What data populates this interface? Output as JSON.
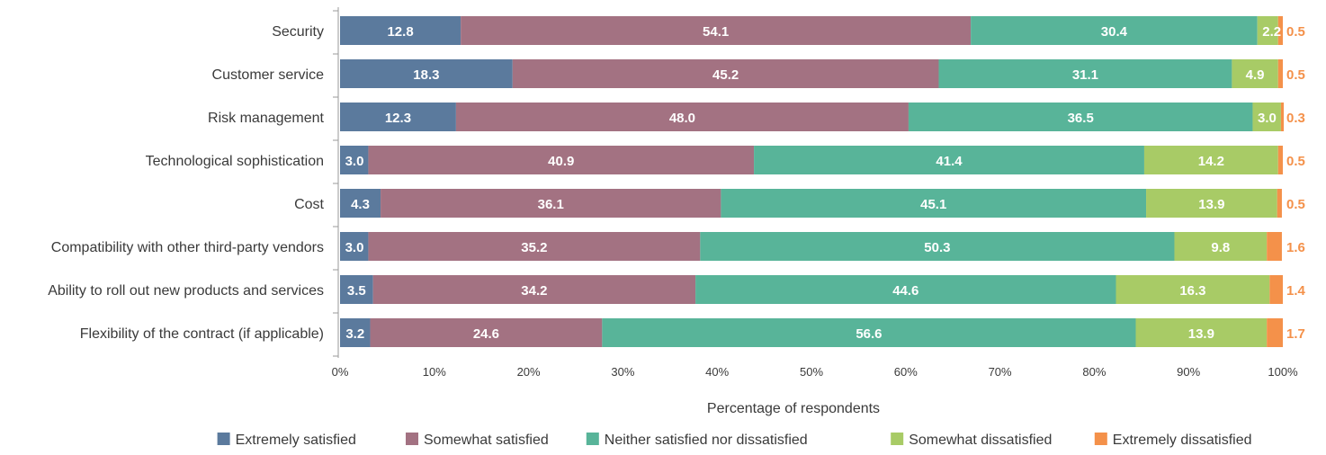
{
  "chart_data": {
    "type": "bar",
    "orientation": "horizontal",
    "stacked": true,
    "categories": [
      "Security",
      "Customer service",
      "Risk management",
      "Technological sophistication",
      "Cost",
      "Compatibility with other third-party vendors",
      "Ability to roll out new products and services",
      "Flexibility of the contract (if applicable)"
    ],
    "series": [
      {
        "name": "Extremely satisfied",
        "color": "#5b7a9d",
        "values": [
          12.8,
          18.3,
          12.3,
          3.0,
          4.3,
          3.0,
          3.5,
          3.2
        ]
      },
      {
        "name": "Somewhat satisfied",
        "color": "#a37282",
        "values": [
          54.1,
          45.2,
          48.0,
          40.9,
          36.1,
          35.2,
          34.2,
          24.6
        ]
      },
      {
        "name": "Neither satisfied nor dissatisfied",
        "color": "#58b499",
        "values": [
          30.4,
          31.1,
          36.5,
          41.4,
          45.1,
          50.3,
          44.6,
          56.6
        ]
      },
      {
        "name": "Somewhat dissatisfied",
        "color": "#a8cb66",
        "values": [
          2.2,
          4.9,
          3.0,
          14.2,
          13.9,
          9.8,
          16.3,
          13.9
        ]
      },
      {
        "name": "Extremely dissatisfied",
        "color": "#f4914a",
        "values": [
          0.5,
          0.5,
          0.3,
          0.5,
          0.5,
          1.6,
          1.4,
          1.7
        ]
      }
    ],
    "xlabel": "Percentage of respondents",
    "ylabel": "",
    "xlim": [
      0,
      100
    ],
    "ticks": [
      "0%",
      "10%",
      "20%",
      "30%",
      "40%",
      "50%",
      "60%",
      "70%",
      "80%",
      "90%",
      "100%"
    ],
    "grid": false,
    "legend_position": "bottom"
  }
}
